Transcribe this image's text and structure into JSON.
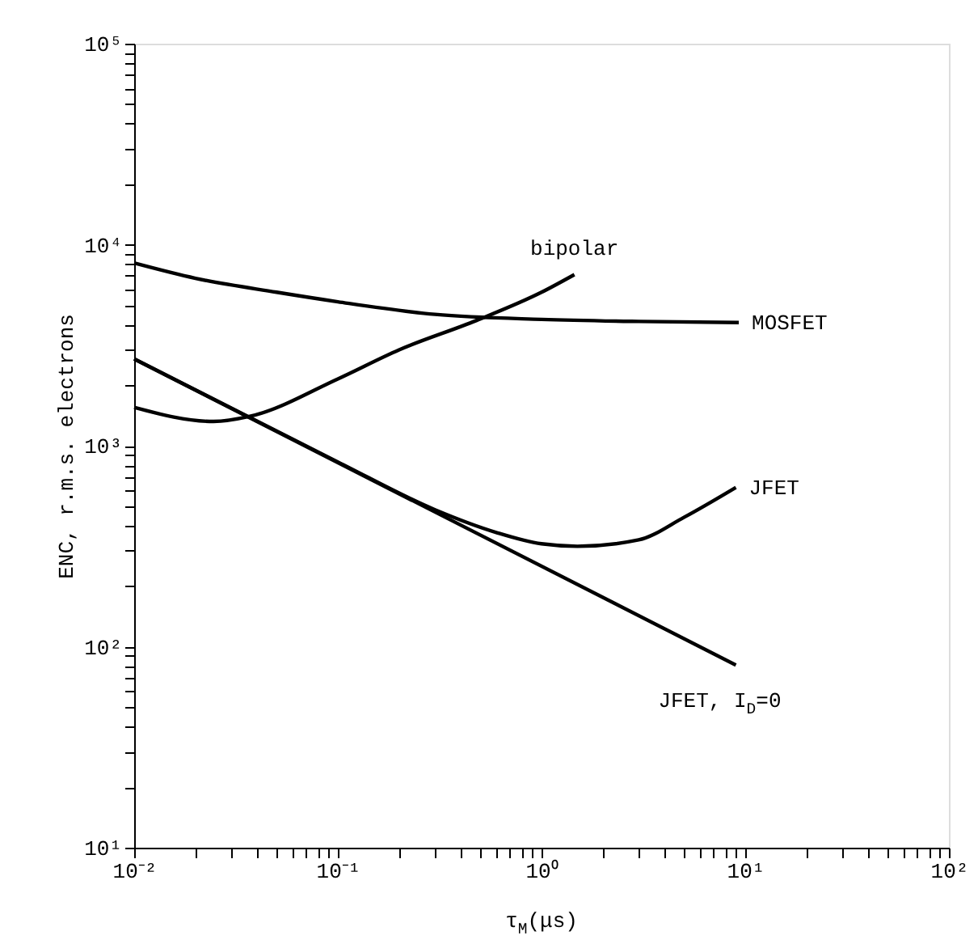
{
  "chart_data": {
    "type": "line",
    "xlabel": "τ$_{M}$(μs)",
    "ylabel": "ENC, r.m.s. electrons",
    "log": "xy",
    "grid": false,
    "legend": false,
    "marker": "none",
    "line_style": "solid",
    "xlim": [
      0.01,
      100
    ],
    "ylim": [
      10,
      100000
    ],
    "xticks": [
      {
        "value": 0.01,
        "label": "10⁻²"
      },
      {
        "value": 0.02,
        "label": null
      },
      {
        "value": 0.03,
        "label": null
      },
      {
        "value": 0.04,
        "label": null
      },
      {
        "value": 0.05,
        "label": null
      },
      {
        "value": 0.06,
        "label": null
      },
      {
        "value": 0.07,
        "label": null
      },
      {
        "value": 0.08,
        "label": null
      },
      {
        "value": 0.09,
        "label": null
      },
      {
        "value": 0.1,
        "label": "10⁻¹"
      },
      {
        "value": 0.2,
        "label": null
      },
      {
        "value": 0.3,
        "label": null
      },
      {
        "value": 0.4,
        "label": null
      },
      {
        "value": 0.5,
        "label": null
      },
      {
        "value": 0.6,
        "label": null
      },
      {
        "value": 0.7,
        "label": null
      },
      {
        "value": 0.8,
        "label": null
      },
      {
        "value": 0.9,
        "label": null
      },
      {
        "value": 1,
        "label": "10⁰"
      },
      {
        "value": 2,
        "label": null
      },
      {
        "value": 3,
        "label": null
      },
      {
        "value": 4,
        "label": null
      },
      {
        "value": 5,
        "label": null
      },
      {
        "value": 6,
        "label": null
      },
      {
        "value": 7,
        "label": null
      },
      {
        "value": 8,
        "label": null
      },
      {
        "value": 9,
        "label": null
      },
      {
        "value": 10,
        "label": "10¹"
      },
      {
        "value": 20,
        "label": null
      },
      {
        "value": 30,
        "label": null
      },
      {
        "value": 40,
        "label": null
      },
      {
        "value": 50,
        "label": null
      },
      {
        "value": 60,
        "label": null
      },
      {
        "value": 70,
        "label": null
      },
      {
        "value": 80,
        "label": null
      },
      {
        "value": 90,
        "label": null
      },
      {
        "value": 100,
        "label": "10²"
      }
    ],
    "yticks": [
      {
        "value": 10,
        "label": "10¹"
      },
      {
        "value": 20,
        "label": null
      },
      {
        "value": 30,
        "label": null
      },
      {
        "value": 40,
        "label": null
      },
      {
        "value": 50,
        "label": null
      },
      {
        "value": 60,
        "label": null
      },
      {
        "value": 70,
        "label": null
      },
      {
        "value": 80,
        "label": null
      },
      {
        "value": 90,
        "label": null
      },
      {
        "value": 100,
        "label": "10²"
      },
      {
        "value": 200,
        "label": null
      },
      {
        "value": 300,
        "label": null
      },
      {
        "value": 400,
        "label": null
      },
      {
        "value": 500,
        "label": null
      },
      {
        "value": 600,
        "label": null
      },
      {
        "value": 700,
        "label": null
      },
      {
        "value": 800,
        "label": null
      },
      {
        "value": 900,
        "label": null
      },
      {
        "value": 1000,
        "label": "10³"
      },
      {
        "value": 2000,
        "label": null
      },
      {
        "value": 3000,
        "label": null
      },
      {
        "value": 4000,
        "label": null
      },
      {
        "value": 5000,
        "label": null
      },
      {
        "value": 6000,
        "label": null
      },
      {
        "value": 7000,
        "label": null
      },
      {
        "value": 8000,
        "label": null
      },
      {
        "value": 9000,
        "label": null
      },
      {
        "value": 10000,
        "label": "10⁴"
      },
      {
        "value": 20000,
        "label": null
      },
      {
        "value": 30000,
        "label": null
      },
      {
        "value": 40000,
        "label": null
      },
      {
        "value": 50000,
        "label": null
      },
      {
        "value": 60000,
        "label": null
      },
      {
        "value": 70000,
        "label": null
      },
      {
        "value": 80000,
        "label": null
      },
      {
        "value": 90000,
        "label": null
      },
      {
        "value": 100000,
        "label": "10⁵"
      }
    ],
    "series": [
      {
        "name": "MOSFET",
        "color": "#000000",
        "x": [
          0.01,
          0.02,
          0.05,
          0.1,
          0.3,
          1,
          3,
          9.3
        ],
        "values": [
          8100,
          6800,
          5800,
          5200,
          4500,
          4250,
          4150,
          4100
        ]
      },
      {
        "name": "bipolar",
        "color": "#000000",
        "x": [
          0.01,
          0.0245,
          0.037,
          0.1,
          0.2,
          0.48,
          1,
          1.45
        ],
        "values": [
          1550,
          1320,
          1400,
          2150,
          3000,
          4200,
          5800,
          7100
        ]
      },
      {
        "name": "JFET",
        "color": "#000000",
        "x": [
          0.01,
          0.1,
          0.3,
          0.6,
          1,
          1.5,
          3,
          5,
          9
        ],
        "values": [
          2700,
          830,
          480,
          370,
          325,
          316,
          340,
          440,
          620
        ]
      },
      {
        "name": "JFET, I$_{D}$=0",
        "color": "#000000",
        "x": [
          0.01,
          9
        ],
        "values": [
          2700,
          81
        ]
      }
    ]
  }
}
